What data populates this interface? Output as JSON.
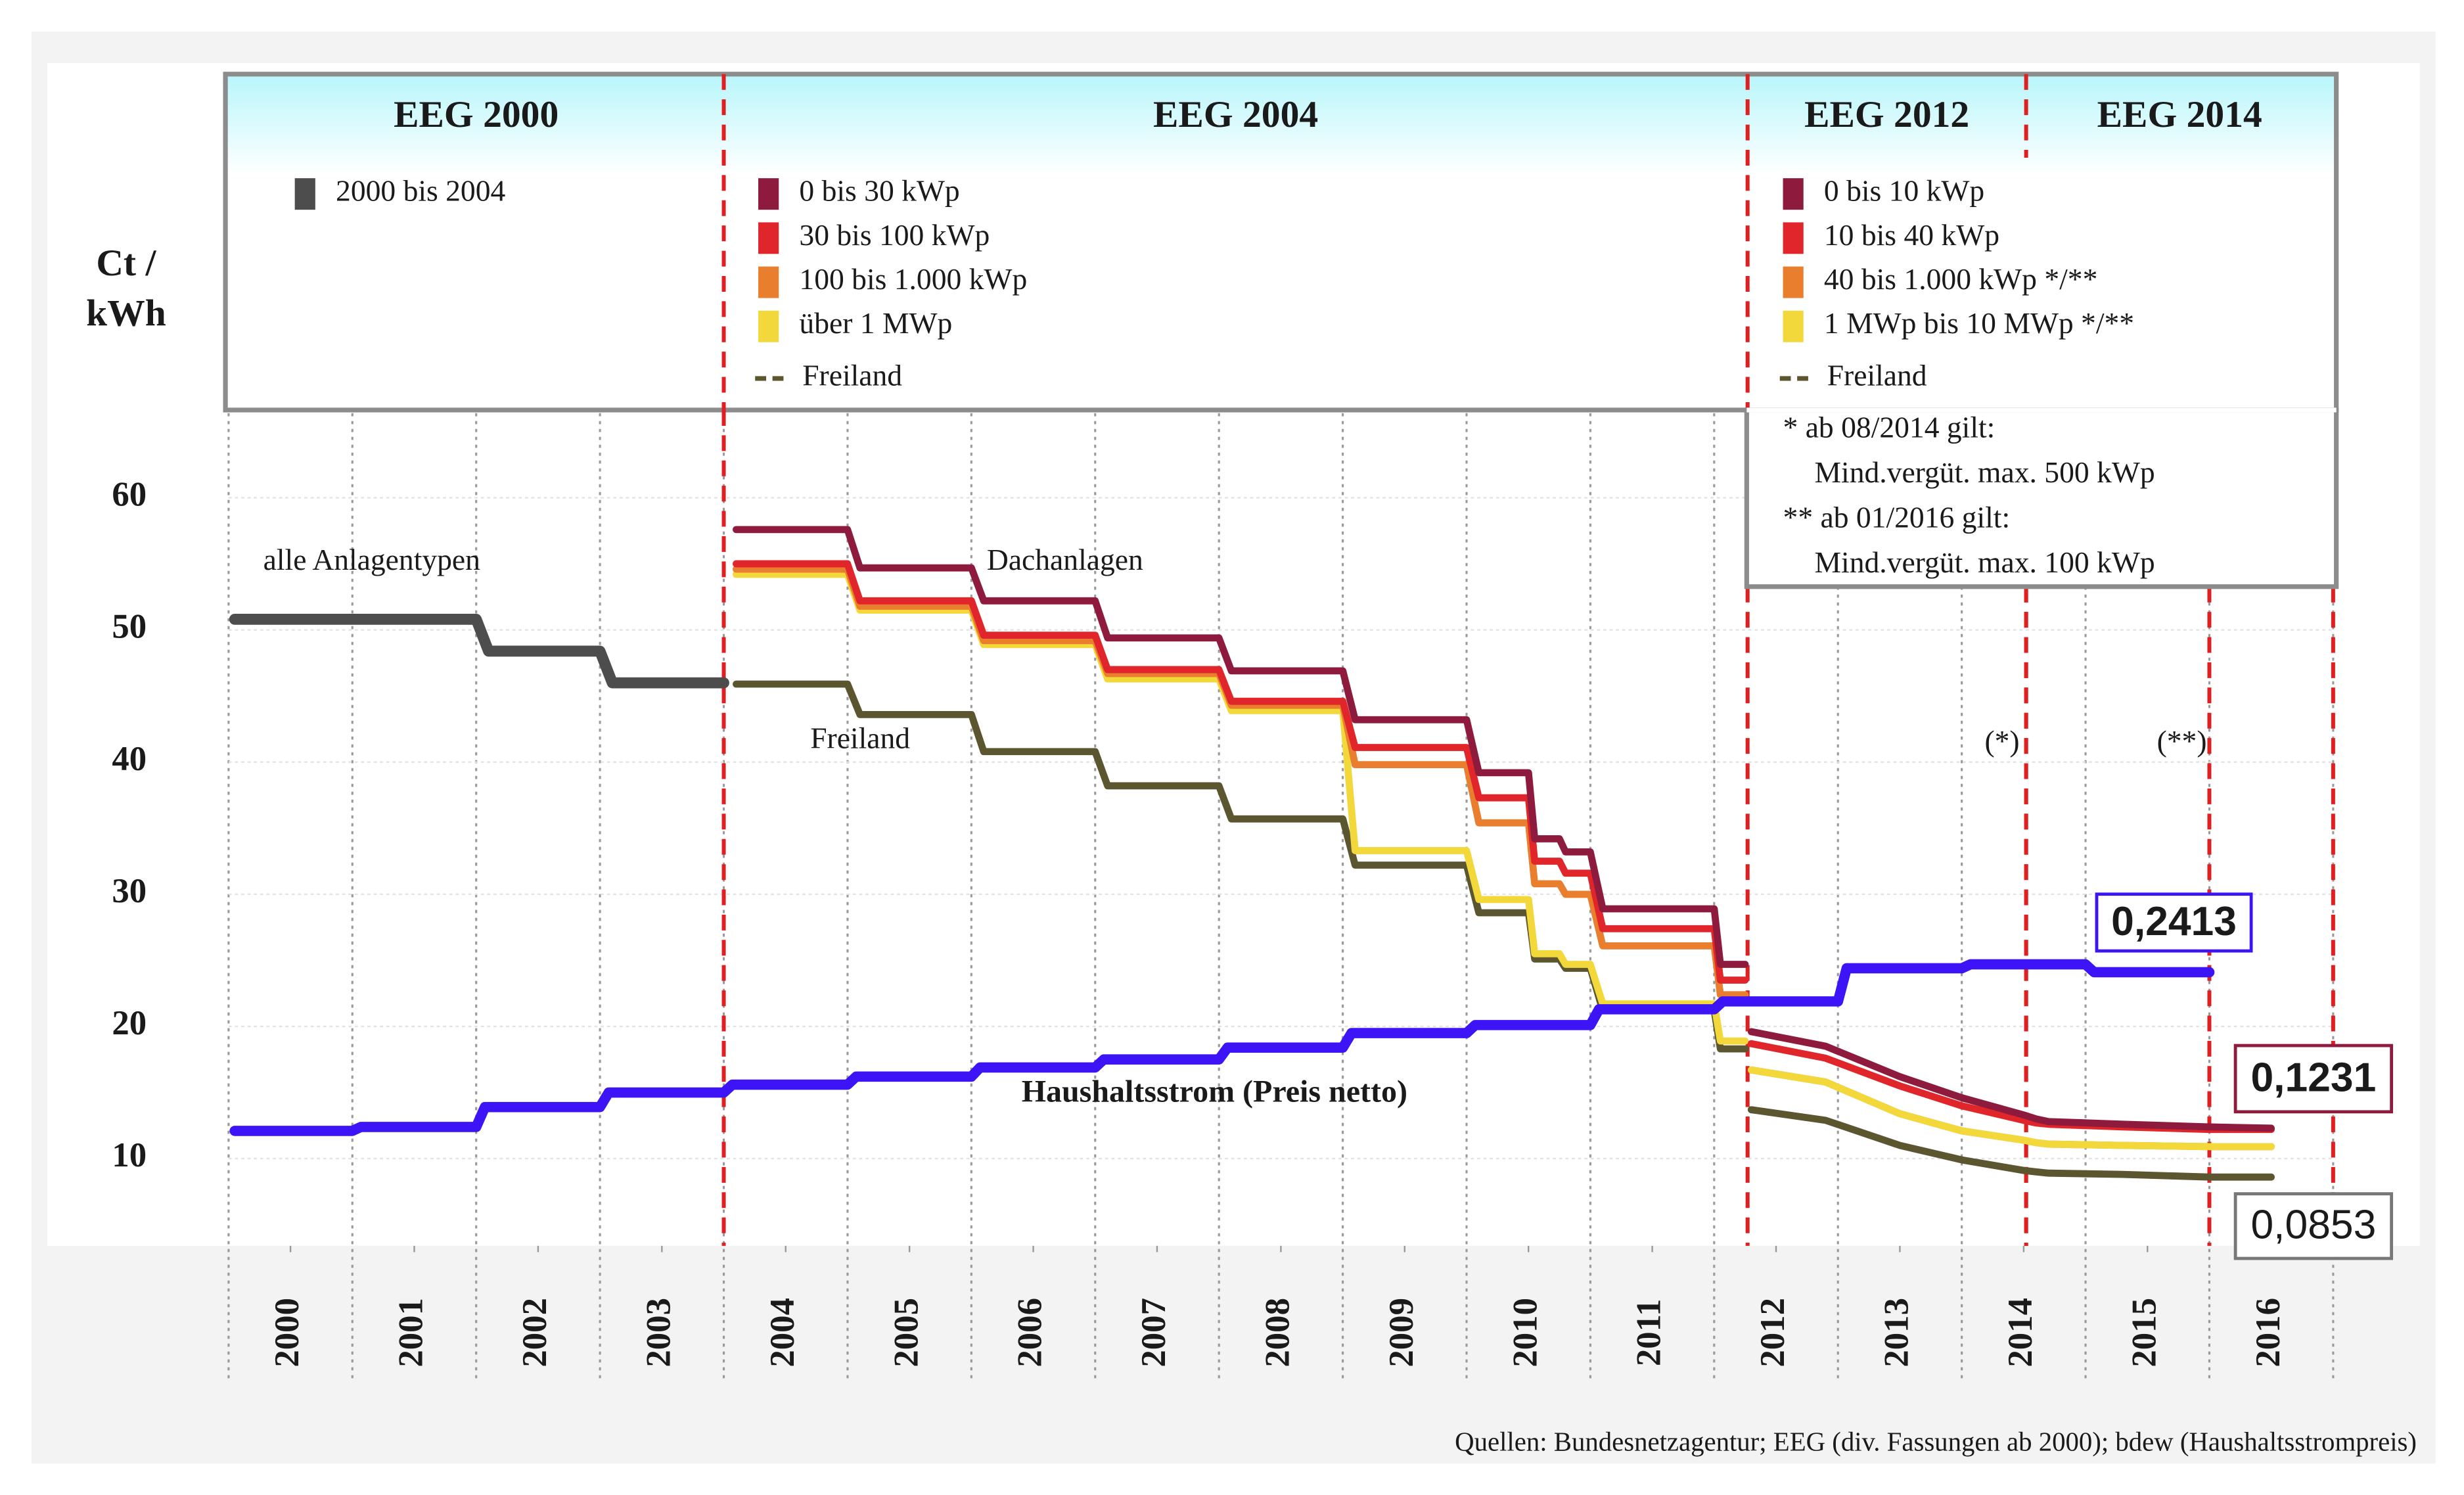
{
  "chart_data": {
    "type": "line",
    "y_label_lines": [
      "Ct /",
      "kWh"
    ],
    "xlim": [
      2000,
      2017
    ],
    "xticks": [
      {
        "value": 2000.5,
        "label": "2000"
      },
      {
        "value": 2001.5,
        "label": "2001"
      },
      {
        "value": 2002.5,
        "label": "2002"
      },
      {
        "value": 2003.5,
        "label": "2003"
      },
      {
        "value": 2004.5,
        "label": "2004"
      },
      {
        "value": 2005.5,
        "label": "2005"
      },
      {
        "value": 2006.5,
        "label": "2006"
      },
      {
        "value": 2007.5,
        "label": "2007"
      },
      {
        "value": 2008.5,
        "label": "2008"
      },
      {
        "value": 2009.5,
        "label": "2009"
      },
      {
        "value": 2010.5,
        "label": "2010"
      },
      {
        "value": 2011.5,
        "label": "2011"
      },
      {
        "value": 2012.5,
        "label": "2012"
      },
      {
        "value": 2013.5,
        "label": "2013"
      },
      {
        "value": 2014.5,
        "label": "2014"
      },
      {
        "value": 2015.5,
        "label": "2015"
      },
      {
        "value": 2016.5,
        "label": "2016"
      }
    ],
    "ylim": [
      3.4,
      66.4
    ],
    "yticks": [
      10,
      20,
      30,
      40,
      50,
      60
    ],
    "grid": true,
    "periods": [
      {
        "label": "EEG 2000",
        "start": 2000,
        "end": 2004,
        "series": [
          {
            "name": "2000 bis 2004",
            "color": "#4d4d4d",
            "x": [
              2000.05,
              2002,
              2002.1,
              2003,
              2003.1,
              2004
            ],
            "values": [
              50.8,
              50.8,
              48.4,
              48.4,
              46.0,
              46.0
            ]
          }
        ]
      },
      {
        "label": "EEG 2004",
        "start": 2004,
        "end": 2012.27,
        "series": [
          {
            "name": "0 bis 30 kWp",
            "color": "#8e1b3d",
            "x": [
              2004.1,
              2005,
              2005.1,
              2006,
              2006.1,
              2007,
              2007.1,
              2008,
              2008.1,
              2009,
              2009.1,
              2010,
              2010.1,
              2010.5,
              2010.55,
              2010.75,
              2010.8,
              2011,
              2011.1,
              2012,
              2012.05,
              2012.25
            ],
            "values": [
              57.6,
              57.6,
              54.7,
              54.7,
              52.2,
              52.2,
              49.4,
              49.4,
              46.9,
              46.9,
              43.2,
              43.2,
              39.2,
              39.2,
              34.2,
              34.2,
              33.2,
              33.2,
              28.9,
              28.9,
              24.7,
              24.7
            ]
          },
          {
            "name": "30 bis 100 kWp",
            "color": "#e0262a",
            "x": [
              2004.1,
              2005,
              2005.1,
              2006,
              2006.1,
              2007,
              2007.1,
              2008,
              2008.1,
              2009,
              2009.1,
              2010,
              2010.1,
              2010.5,
              2010.55,
              2010.75,
              2010.8,
              2011,
              2011.1,
              2012,
              2012.05,
              2012.25
            ],
            "values": [
              55.0,
              55.0,
              52.2,
              52.2,
              49.6,
              49.6,
              47.0,
              47.0,
              44.6,
              44.6,
              41.1,
              41.1,
              37.3,
              37.3,
              32.5,
              32.5,
              31.6,
              31.6,
              27.4,
              27.4,
              23.5,
              23.5
            ]
          },
          {
            "name": "100 bis 1.000 kWp",
            "color": "#e87e2e",
            "x": [
              2004.1,
              2005,
              2005.1,
              2006,
              2006.1,
              2007,
              2007.1,
              2008,
              2008.1,
              2009,
              2009.1,
              2010,
              2010.1,
              2010.5,
              2010.55,
              2010.75,
              2010.8,
              2011,
              2011.1,
              2012,
              2012.05,
              2012.25
            ],
            "values": [
              54.6,
              54.6,
              51.8,
              51.8,
              49.2,
              49.2,
              46.7,
              46.7,
              44.3,
              44.3,
              39.8,
              39.8,
              35.4,
              35.4,
              30.8,
              30.8,
              30.0,
              30.0,
              26.1,
              26.1,
              22.4,
              22.4
            ]
          },
          {
            "name": "über 1 MWp",
            "color": "#f3d83c",
            "x": [
              2004.1,
              2005,
              2005.1,
              2006,
              2006.1,
              2007,
              2007.1,
              2008,
              2008.1,
              2009,
              2009.1,
              2010,
              2010.1,
              2010.5,
              2010.55,
              2010.75,
              2010.8,
              2011,
              2011.1,
              2012,
              2012.05,
              2012.25
            ],
            "values": [
              54.2,
              54.2,
              51.5,
              51.5,
              48.9,
              48.9,
              46.3,
              46.3,
              43.9,
              43.9,
              33.3,
              33.3,
              29.6,
              29.6,
              25.5,
              25.5,
              24.7,
              24.7,
              21.7,
              21.7,
              18.9,
              18.9
            ]
          },
          {
            "name": "Freiland",
            "dashed": true,
            "color": "#5b5530",
            "x": [
              2004.1,
              2005,
              2005.1,
              2006,
              2006.1,
              2007,
              2007.1,
              2008,
              2008.1,
              2009,
              2009.1,
              2010,
              2010.1,
              2010.5,
              2010.55,
              2010.75,
              2010.8,
              2011,
              2011.1,
              2012,
              2012.05,
              2012.25
            ],
            "values": [
              45.9,
              45.9,
              43.6,
              43.6,
              40.8,
              40.8,
              38.2,
              38.2,
              35.7,
              35.7,
              32.2,
              32.2,
              28.6,
              28.6,
              25.1,
              25.1,
              24.4,
              24.4,
              21.2,
              21.2,
              18.3,
              18.3
            ]
          }
        ]
      },
      {
        "label": "EEG 2012",
        "start": 2012.27,
        "end": 2014.52,
        "series": [
          {
            "name": "1 MWp bis 10 MWp */**",
            "color": "#f3d83c",
            "x": [
              2012.3,
              2012.9,
              2013.5,
              2014,
              2014.5,
              2014.6,
              2014.7,
              2015.3,
              2016,
              2016.5
            ],
            "values": [
              16.7,
              15.8,
              13.4,
              12.1,
              11.4,
              11.2,
              11.1,
              11.0,
              10.9,
              10.9
            ]
          },
          {
            "name": "0 bis 10 kWp",
            "color": "#8e1b3d",
            "x": [
              2012.3,
              2012.9,
              2013.5,
              2014,
              2014.5,
              2014.6,
              2014.7,
              2015.3,
              2016,
              2016.5
            ],
            "values": [
              19.6,
              18.5,
              16.2,
              14.6,
              13.3,
              13.0,
              12.8,
              12.6,
              12.4,
              12.3
            ]
          },
          {
            "name": "10 bis 40 kWp",
            "color": "#e0262a",
            "x": [
              2012.3,
              2012.9,
              2013.5,
              2014,
              2014.5,
              2014.6,
              2014.7,
              2015.3,
              2016,
              2016.5
            ],
            "values": [
              18.7,
              17.6,
              15.5,
              14.0,
              12.9,
              12.7,
              12.6,
              12.4,
              12.2,
              12.2
            ]
          },
          {
            "name": "40 bis 1.000 kWp */**",
            "color": "#e87e2e",
            "x": [
              2012.3,
              2012.9,
              2013.5,
              2014,
              2014.5,
              2014.6,
              2014.7,
              2015.3,
              2016,
              2016.5
            ],
            "values": [
              16.7,
              15.8,
              13.4,
              12.1,
              11.4,
              11.2,
              11.1,
              11.0,
              10.9,
              10.9
            ]
          },
          {
            "name": "Freiland",
            "dashed": true,
            "color": "#5b5530",
            "x": [
              2012.3,
              2012.9,
              2013.5,
              2014,
              2014.5,
              2014.6,
              2014.7,
              2015.3,
              2016,
              2016.5
            ],
            "values": [
              13.7,
              12.9,
              11.0,
              9.9,
              9.1,
              9.0,
              8.9,
              8.8,
              8.6,
              8.6
            ]
          }
        ]
      },
      {
        "label": "EEG 2014",
        "start": 2014.52,
        "end": 2017,
        "series": []
      }
    ],
    "series": [
      {
        "name": "Haushaltsstrom (Preis netto)",
        "color": "#3c14f5",
        "x": [
          2000.05,
          2001,
          2001.07,
          2002,
          2002.07,
          2003,
          2003.07,
          2004,
          2004.07,
          2005,
          2005.07,
          2006,
          2006.07,
          2007,
          2007.07,
          2008,
          2008.07,
          2009,
          2009.07,
          2010,
          2010.07,
          2011,
          2011.07,
          2012,
          2012.07,
          2013,
          2013.07,
          2014,
          2014.07,
          2015,
          2015.07,
          2016
        ],
        "values": [
          12.1,
          12.1,
          12.4,
          12.4,
          13.9,
          13.9,
          15.0,
          15.0,
          15.6,
          15.6,
          16.2,
          16.2,
          16.9,
          16.9,
          17.5,
          17.5,
          18.4,
          18.4,
          19.5,
          19.5,
          20.1,
          20.1,
          21.3,
          21.3,
          21.9,
          21.9,
          24.4,
          24.4,
          24.7,
          24.7,
          24.1,
          24.1
        ]
      }
    ],
    "markers": [
      {
        "x": 2014.52,
        "label": "(*)"
      },
      {
        "x": 2016,
        "label": "(**)"
      },
      {
        "x": 2017
      }
    ],
    "notes": [
      "*  ab  08/2014 gilt:",
      "Mind.vergüt. max. 500 kWp",
      "** ab  01/2016 gilt:",
      "Mind.vergüt. max. 100 kWp"
    ],
    "annotations": [
      "alle Anlagentypen",
      "Dachanlagen",
      "Freiland",
      "(*)",
      "(**)"
    ],
    "value_boxes": [
      {
        "text": "0,2413",
        "color": "#3c14f5"
      },
      {
        "text": "0,1231",
        "color": "#8e1b3d"
      },
      {
        "text": "0,0853",
        "color": "#1a1a1a"
      }
    ],
    "source": "Quellen: Bundesnetzagentur; EEG (div. Fassungen ab 2000); bdew (Haushaltsstrompreis)"
  }
}
